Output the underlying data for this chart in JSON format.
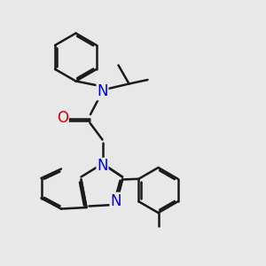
{
  "background_color": "#e8e8e8",
  "bond_color": "#1a1a1a",
  "N_color": "#0000ee",
  "O_color": "#dd0000",
  "line_width": 1.8,
  "figsize": [
    3.0,
    3.0
  ],
  "dpi": 100,
  "xlim": [
    0,
    10
  ],
  "ylim": [
    0,
    10
  ]
}
